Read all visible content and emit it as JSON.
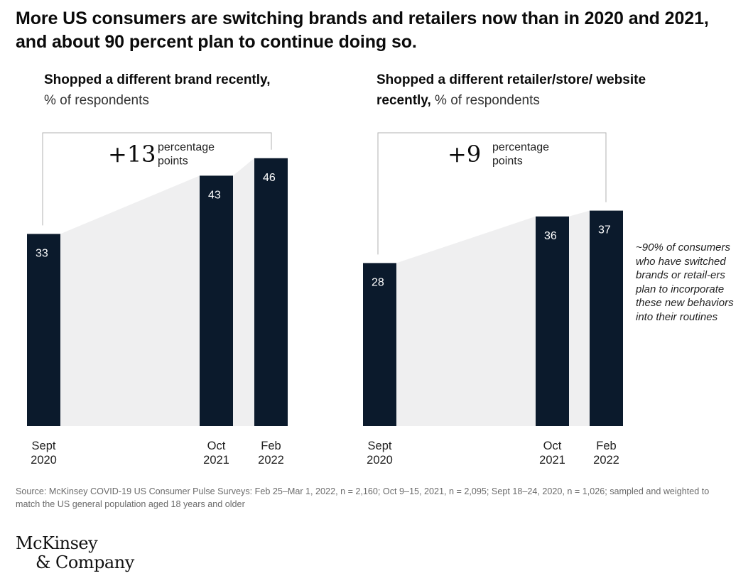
{
  "title": "More US consumers are switching brands and retailers now than in 2020 and 2021, and about 90 percent plan to continue doing so.",
  "colors": {
    "bar": "#0b1a2c",
    "bar_label": "#ffffff",
    "shading": "#efeff0",
    "bracket": "#b0b0b0"
  },
  "chart_data": [
    {
      "type": "bar",
      "title_strong": "Shopped a different brand recently,",
      "title_weak": "% of respondents",
      "categories": [
        "Sept 2020",
        "Oct 2021",
        "Feb 2022"
      ],
      "category_lines": [
        [
          "Sept",
          "2020"
        ],
        [
          "Oct",
          "2021"
        ],
        [
          "Feb",
          "2022"
        ]
      ],
      "values": [
        33,
        43,
        46
      ],
      "value_labels": [
        "33",
        "43",
        "46"
      ],
      "ylim": [
        0,
        60
      ],
      "grid": false,
      "annotation": {
        "value": "+13",
        "text_lines": [
          "percentage",
          "points"
        ]
      }
    },
    {
      "type": "bar",
      "title_strong": "Shopped a different retailer/store/ website recently,",
      "title_weak": "% of respondents",
      "categories": [
        "Sept 2020",
        "Oct 2021",
        "Feb 2022"
      ],
      "category_lines": [
        [
          "Sept",
          "2020"
        ],
        [
          "Oct",
          "2021"
        ],
        [
          "Feb",
          "2022"
        ]
      ],
      "values": [
        28,
        36,
        37
      ],
      "value_labels": [
        "28",
        "36",
        "37"
      ],
      "ylim": [
        0,
        60
      ],
      "grid": false,
      "annotation": {
        "value": "+9",
        "text_lines": [
          "percentage",
          "points"
        ]
      }
    }
  ],
  "note": "~90% of consumers who have switched brands or retail-ers plan to incorporate these new behaviors into their routines",
  "source": "Source: McKinsey COVID-19 US Consumer Pulse Surveys: Feb 25–Mar 1, 2022, n = 2,160; Oct 9–15, 2021, n = 2,095; Sept 18–24, 2020, n = 1,026; sampled and weighted to match the US general population aged 18 years and older",
  "logo": {
    "line1": "McKinsey",
    "line2": "& Company"
  }
}
